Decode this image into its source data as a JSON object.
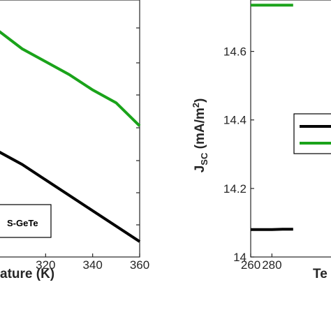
{
  "chart_data": [
    {
      "type": "line",
      "xlabel": "ature (K)",
      "ylabel": "",
      "xlim": [
        300,
        360
      ],
      "ylim": [
        0,
        1
      ],
      "xticks": [
        320,
        340,
        360
      ],
      "yticks": [],
      "legend": {
        "position": "bottom-left",
        "entries": [
          "S-GeTe"
        ]
      },
      "series": [
        {
          "color": "#1aa31a",
          "x": [
            300,
            310,
            320,
            330,
            340,
            350,
            360
          ],
          "y": [
            0.88,
            0.81,
            0.76,
            0.71,
            0.65,
            0.6,
            0.51
          ]
        },
        {
          "name": "S-GeTe",
          "color": "#000000",
          "x": [
            300,
            310,
            320,
            330,
            340,
            350,
            360
          ],
          "y": [
            0.41,
            0.36,
            0.3,
            0.24,
            0.18,
            0.12,
            0.06
          ]
        }
      ]
    },
    {
      "type": "line",
      "xlabel": "Te",
      "ylabel": "J_SC (mA/m^2)",
      "ylabel_parts": {
        "main": "J",
        "sub": "SC",
        "unit_open": " (mA/m",
        "sup": "2",
        "unit_close": ")"
      },
      "xlim": [
        260,
        300
      ],
      "ylim": [
        14.0,
        14.75
      ],
      "xticks": [
        260,
        280
      ],
      "yticks": [
        14.0,
        14.2,
        14.4,
        14.6
      ],
      "ytick_labels": [
        "14",
        "14.2",
        "14.4",
        "14.6"
      ],
      "legend": {
        "position": "center-right"
      },
      "series": [
        {
          "color": "#1aa31a",
          "x": [
            260,
            270,
            280,
            290,
            300
          ],
          "y": [
            14.735,
            14.735,
            14.735,
            14.735,
            14.735
          ]
        },
        {
          "color": "#000000",
          "x": [
            260,
            270,
            280,
            290,
            300
          ],
          "y": [
            14.08,
            14.08,
            14.08,
            14.081,
            14.081
          ]
        }
      ]
    }
  ]
}
